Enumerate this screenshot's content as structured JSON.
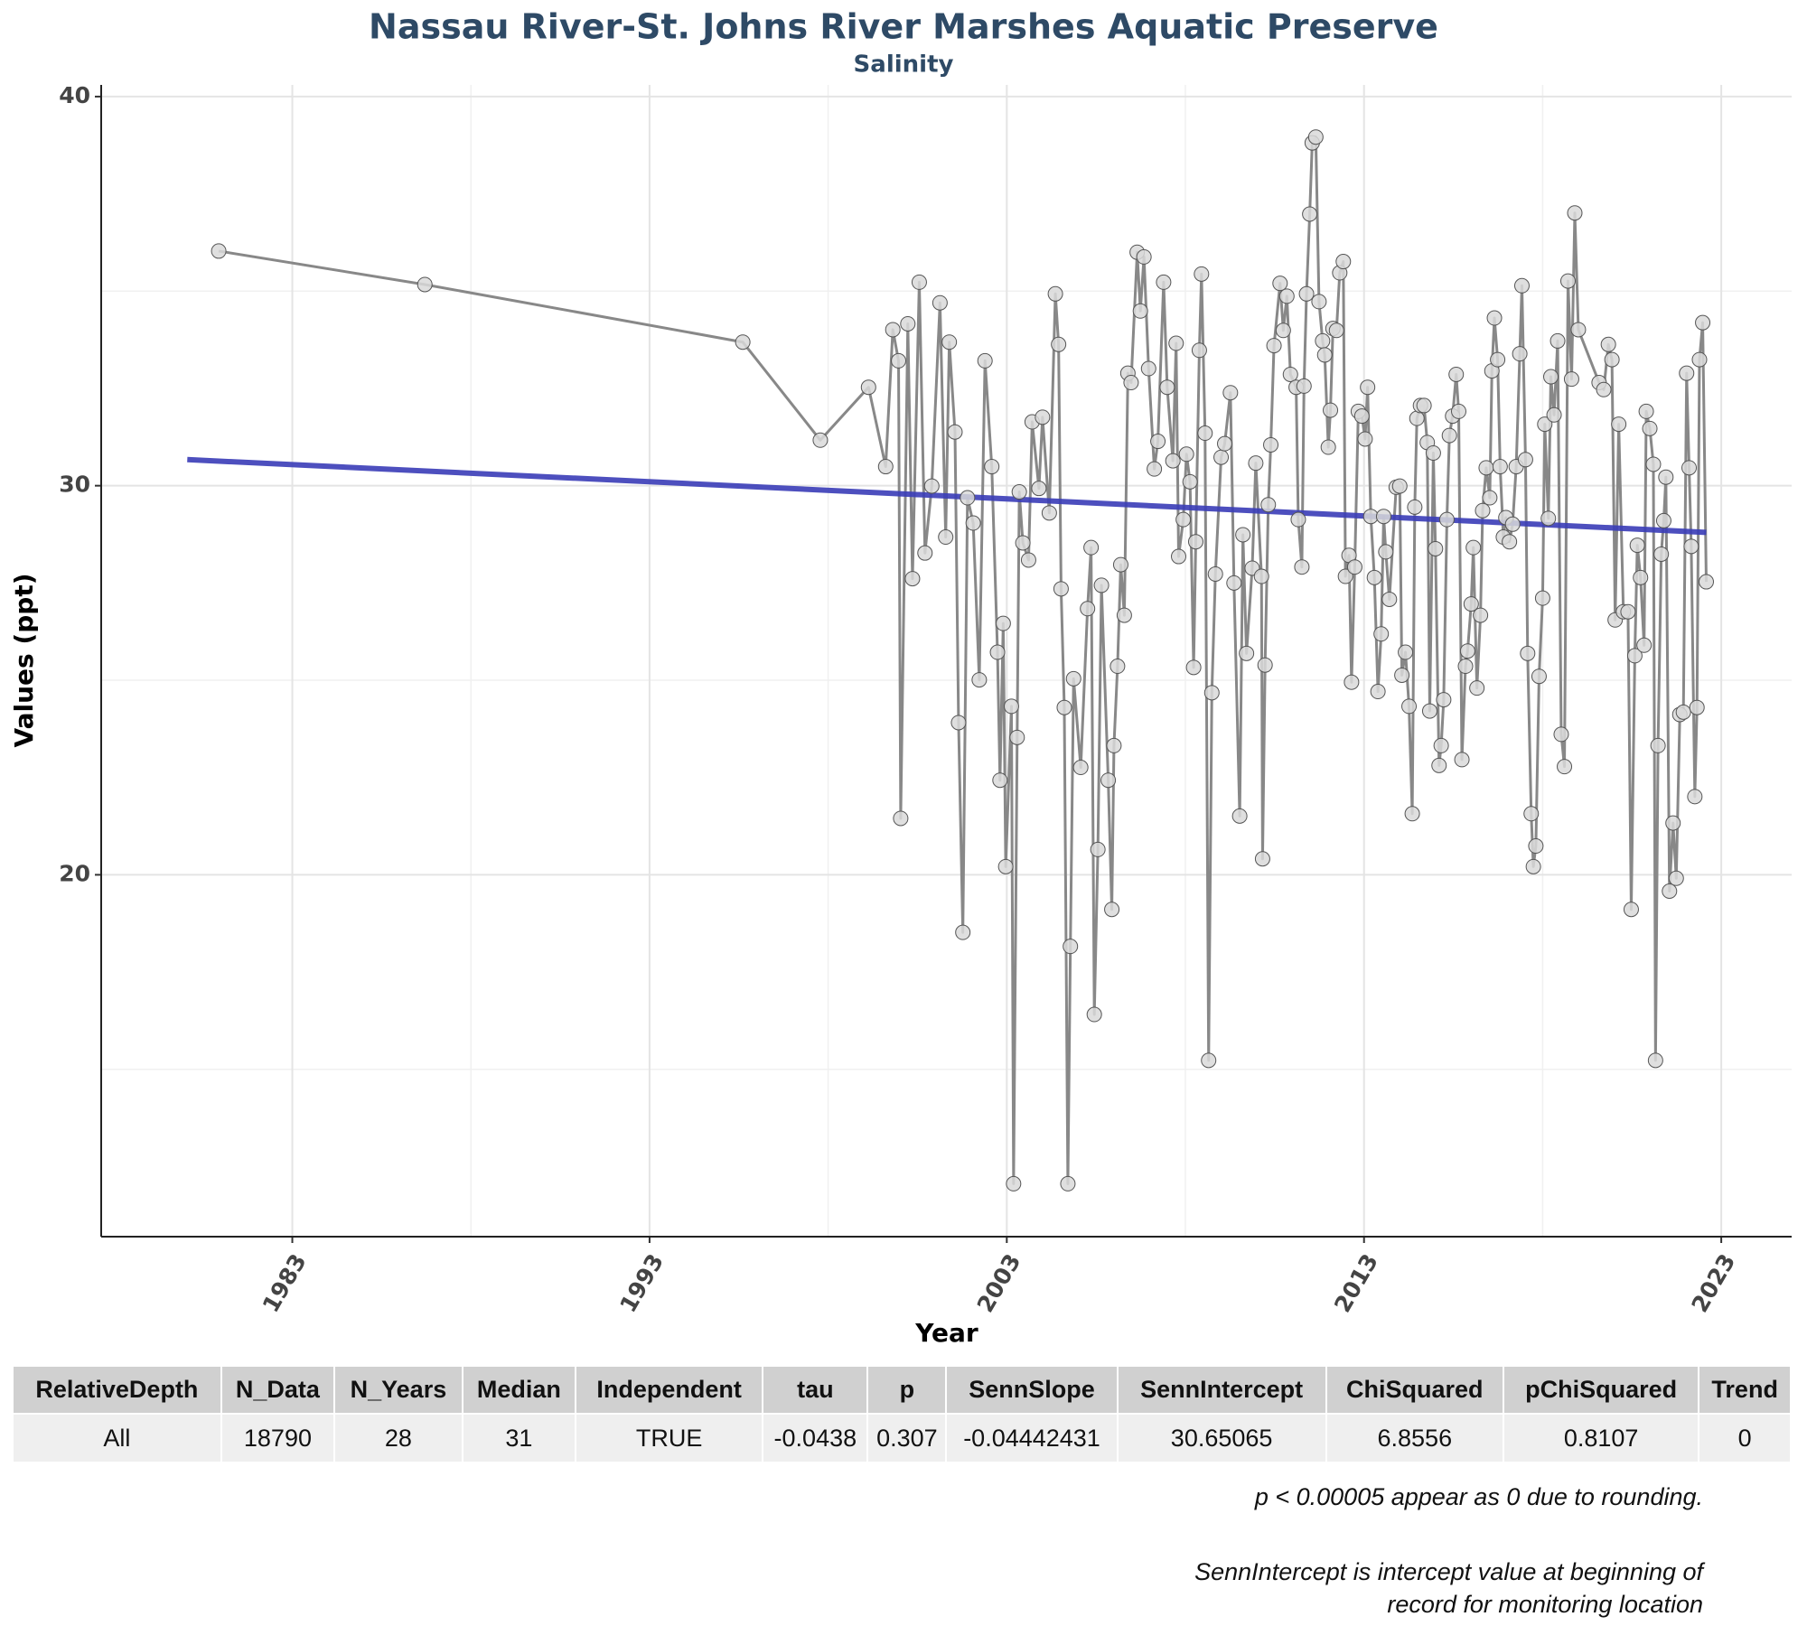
{
  "chart_data": {
    "type": "line",
    "title": "Nassau River-St. Johns River Marshes Aquatic Preserve",
    "subtitle": "Salinity",
    "x_label": "Year",
    "y_label": "Values (ppt)",
    "xlim": [
      1977.65,
      2024.97
    ],
    "ylim": [
      10.7,
      40.3
    ],
    "xticks": [
      1983,
      1993,
      2003,
      2013,
      2023
    ],
    "yticks": [
      20,
      30,
      40
    ],
    "xminor_grid": [
      1988,
      1998,
      2008,
      2018
    ],
    "yminor_grid": [
      15,
      25,
      35
    ],
    "grid": true,
    "x": [
      1980.94,
      1986.71,
      1995.61,
      1997.78,
      1999.13,
      1999.61,
      1999.81,
      1999.97,
      2000.03,
      2000.23,
      2000.36,
      2000.55,
      2000.71,
      2000.9,
      2001.13,
      2001.29,
      2001.39,
      2001.55,
      2001.65,
      2001.77,
      2001.9,
      2002.06,
      2002.23,
      2002.39,
      2002.58,
      2002.74,
      2002.81,
      2002.9,
      2002.97,
      2003.13,
      2003.19,
      2003.29,
      2003.35,
      2003.45,
      2003.61,
      2003.71,
      2003.9,
      2004.0,
      2004.19,
      2004.36,
      2004.45,
      2004.52,
      2004.61,
      2004.71,
      2004.78,
      2004.87,
      2005.07,
      2005.26,
      2005.36,
      2005.45,
      2005.55,
      2005.65,
      2005.84,
      2005.94,
      2006.0,
      2006.1,
      2006.19,
      2006.29,
      2006.39,
      2006.48,
      2006.65,
      2006.74,
      2006.84,
      2006.97,
      2007.13,
      2007.23,
      2007.39,
      2007.49,
      2007.65,
      2007.74,
      2007.81,
      2007.94,
      2008.03,
      2008.13,
      2008.23,
      2008.29,
      2008.39,
      2008.45,
      2008.55,
      2008.65,
      2008.74,
      2008.84,
      2009.0,
      2009.1,
      2009.26,
      2009.36,
      2009.52,
      2009.61,
      2009.71,
      2009.87,
      2009.97,
      2010.13,
      2010.16,
      2010.23,
      2010.32,
      2010.39,
      2010.48,
      2010.65,
      2010.74,
      2010.84,
      2010.94,
      2011.1,
      2011.16,
      2011.26,
      2011.32,
      2011.39,
      2011.48,
      2011.55,
      2011.65,
      2011.74,
      2011.84,
      2011.9,
      2012.0,
      2012.06,
      2012.13,
      2012.23,
      2012.32,
      2012.42,
      2012.48,
      2012.58,
      2012.65,
      2012.74,
      2012.84,
      2012.94,
      2013.03,
      2013.1,
      2013.19,
      2013.29,
      2013.39,
      2013.48,
      2013.55,
      2013.61,
      2013.71,
      2013.9,
      2014.0,
      2014.06,
      2014.16,
      2014.26,
      2014.35,
      2014.42,
      2014.48,
      2014.58,
      2014.68,
      2014.77,
      2014.84,
      2014.94,
      2015.0,
      2015.1,
      2015.16,
      2015.23,
      2015.32,
      2015.39,
      2015.48,
      2015.58,
      2015.65,
      2015.74,
      2015.84,
      2015.9,
      2016.0,
      2016.06,
      2016.16,
      2016.26,
      2016.32,
      2016.42,
      2016.52,
      2016.58,
      2016.65,
      2016.74,
      2016.81,
      2016.9,
      2016.97,
      2017.07,
      2017.16,
      2017.26,
      2017.36,
      2017.42,
      2017.52,
      2017.58,
      2017.68,
      2017.74,
      2017.81,
      2017.9,
      2018.0,
      2018.06,
      2018.16,
      2018.23,
      2018.32,
      2018.42,
      2018.52,
      2018.61,
      2018.71,
      2018.81,
      2018.9,
      2019.0,
      2019.58,
      2019.71,
      2019.84,
      2019.94,
      2020.03,
      2020.13,
      2020.26,
      2020.39,
      2020.48,
      2020.58,
      2020.65,
      2020.74,
      2020.84,
      2020.9,
      2021.0,
      2021.1,
      2021.16,
      2021.23,
      2021.32,
      2021.39,
      2021.45,
      2021.55,
      2021.65,
      2021.74,
      2021.84,
      2021.94,
      2022.03,
      2022.1,
      2022.16,
      2022.26,
      2022.32,
      2022.39,
      2022.48,
      2022.58
    ],
    "series": [
      {
        "color": "#888888",
        "values": [
          36.03,
          35.17,
          33.69,
          31.17,
          32.53,
          30.49,
          34.01,
          33.21,
          21.45,
          34.16,
          27.61,
          35.23,
          28.27,
          29.99,
          34.7,
          28.68,
          33.69,
          31.38,
          23.91,
          18.52,
          29.69,
          29.04,
          25.01,
          33.21,
          30.49,
          25.72,
          22.43,
          26.46,
          20.21,
          24.33,
          12.06,
          23.53,
          29.84,
          28.53,
          28.09,
          31.64,
          29.93,
          31.76,
          29.3,
          34.93,
          33.63,
          27.35,
          24.3,
          12.06,
          18.16,
          25.04,
          22.76,
          26.84,
          28.41,
          16.41,
          20.65,
          27.44,
          22.43,
          19.11,
          23.32,
          25.36,
          27.97,
          26.67,
          32.89,
          32.65,
          36.0,
          34.49,
          35.88,
          33.01,
          30.43,
          31.14,
          35.23,
          32.53,
          30.64,
          33.66,
          28.18,
          29.13,
          30.81,
          30.1,
          25.33,
          28.56,
          33.48,
          35.44,
          31.35,
          15.23,
          24.68,
          27.73,
          30.73,
          31.08,
          32.39,
          27.5,
          21.51,
          28.74,
          25.69,
          27.88,
          30.58,
          27.67,
          20.41,
          25.39,
          29.51,
          31.05,
          33.6,
          35.2,
          33.99,
          34.87,
          32.86,
          32.53,
          29.13,
          27.91,
          32.56,
          34.93,
          36.98,
          38.81,
          38.96,
          34.73,
          33.72,
          33.36,
          30.99,
          31.94,
          34.04,
          33.99,
          35.47,
          35.76,
          27.67,
          28.21,
          24.95,
          27.91,
          31.91,
          31.79,
          31.2,
          32.53,
          29.21,
          27.64,
          24.71,
          26.19,
          29.21,
          28.3,
          27.08,
          29.96,
          29.99,
          25.13,
          25.72,
          24.33,
          21.57,
          29.45,
          31.73,
          32.06,
          32.06,
          31.11,
          24.21,
          30.84,
          28.38,
          22.81,
          23.32,
          24.5,
          29.13,
          31.29,
          31.79,
          32.86,
          31.91,
          22.96,
          25.36,
          25.75,
          26.96,
          28.41,
          24.8,
          26.67,
          29.36,
          30.46,
          29.69,
          32.95,
          34.31,
          33.24,
          30.49,
          28.68,
          29.18,
          28.56,
          29.01,
          30.49,
          33.39,
          35.14,
          30.67,
          25.69,
          21.57,
          20.21,
          20.74,
          25.1,
          27.11,
          31.58,
          29.16,
          32.8,
          31.82,
          33.72,
          23.61,
          22.78,
          35.26,
          32.74,
          37.01,
          34.01,
          32.65,
          32.47,
          33.63,
          33.24,
          26.55,
          31.58,
          26.76,
          26.76,
          19.11,
          25.63,
          28.47,
          27.64,
          25.9,
          31.91,
          31.47,
          30.55,
          15.23,
          23.32,
          28.24,
          29.1,
          30.22,
          19.58,
          21.33,
          19.91,
          24.12,
          24.18,
          32.89,
          30.46,
          28.44,
          22.01,
          24.3,
          33.24,
          34.19,
          27.53
        ]
      }
    ],
    "trend": {
      "color": "#3a3db8",
      "x": [
        1980.06,
        2022.58
      ],
      "values": [
        30.67,
        28.8
      ]
    }
  },
  "table": {
    "columns": [
      "RelativeDepth",
      "N_Data",
      "N_Years",
      "Median",
      "Independent",
      "tau",
      "p",
      "SennSlope",
      "SennIntercept",
      "ChiSquared",
      "pChiSquared",
      "Trend"
    ],
    "rows": [
      [
        "All",
        18790,
        28,
        31,
        "TRUE",
        -0.0438,
        0.307,
        -0.04442431,
        30.65065,
        6.8556,
        0.8107,
        0
      ]
    ]
  },
  "notes": [
    "p < 0.00005 appear as 0 due to rounding.",
    "SennIntercept is intercept value at beginning of record for monitoring location"
  ]
}
